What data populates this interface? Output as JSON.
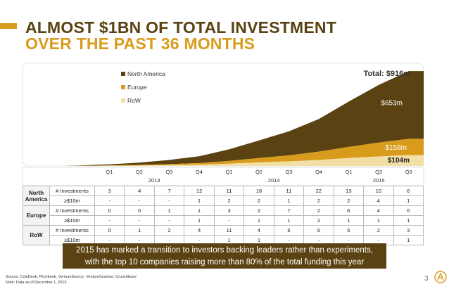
{
  "title": {
    "line1": "ALMOST $1BN OF TOTAL INVESTMENT",
    "line2": "OVER THE PAST 36 MONTHS"
  },
  "colors": {
    "north_america": "#5A4212",
    "europe": "#D89B1C",
    "row": "#F3DFA6",
    "banner": "#5A4212"
  },
  "chart_data": {
    "type": "area",
    "stacked": true,
    "x": [
      "Q1",
      "Q2",
      "Q3",
      "Q4",
      "Q1",
      "Q2",
      "Q3",
      "Q4",
      "Q1",
      "Q2",
      "Q3"
    ],
    "year_groups": [
      {
        "label": "2013",
        "quarters": 4
      },
      {
        "label": "2014",
        "quarters": 4
      },
      {
        "label": "2015",
        "quarters": 3
      }
    ],
    "series": [
      {
        "name": "RoW",
        "values": [
          2,
          4,
          8,
          12,
          22,
          34,
          44,
          58,
          76,
          92,
          104
        ]
      },
      {
        "name": "Europe",
        "values": [
          3,
          6,
          10,
          16,
          26,
          42,
          58,
          80,
          108,
          134,
          158
        ]
      },
      {
        "name": "North America",
        "values": [
          10,
          22,
          40,
          65,
          112,
          170,
          232,
          315,
          438,
          556,
          653
        ]
      }
    ],
    "legend": [
      "North America",
      "Europe",
      "RoW"
    ],
    "legend_position": "top-left",
    "annotations": {
      "total": "Total: $916m",
      "north_america": "$653m",
      "europe": "$158m",
      "row": "$104m"
    }
  },
  "table": {
    "rows": [
      {
        "region": "North America",
        "metric": "# Investments",
        "values": [
          "3",
          "4",
          "7",
          "12",
          "11",
          "16",
          "11",
          "22",
          "13",
          "10",
          "6"
        ]
      },
      {
        "region": "",
        "metric": "≥$10m",
        "values": [
          "-",
          "-",
          "-",
          "1",
          "2",
          "2",
          "1",
          "2",
          "2",
          "4",
          "1"
        ]
      },
      {
        "region": "Europe",
        "metric": "# Investments",
        "values": [
          "0",
          "0",
          "1",
          "1",
          "3",
          "2",
          "7",
          "2",
          "6",
          "4",
          "6"
        ]
      },
      {
        "region": "",
        "metric": "≥$10m",
        "values": [
          "-",
          "-",
          "-",
          "1",
          "-",
          "1",
          "1",
          "2",
          "1",
          "1",
          "1"
        ]
      },
      {
        "region": "RoW",
        "metric": "# Investments",
        "values": [
          "0",
          "1",
          "2",
          "4",
          "11",
          "4",
          "6",
          "6",
          "5",
          "2",
          "3"
        ]
      },
      {
        "region": "",
        "metric": "≥$10m",
        "values": [
          "-",
          "-",
          "-",
          "-",
          "1",
          "1",
          "-",
          "-",
          "-",
          "-",
          "1"
        ]
      }
    ]
  },
  "banner": {
    "line1": "2015 has marked a transition to investors backing leaders rather than experiments,",
    "line2": "with the top 10 companies raising more than 80% of the total funding this year"
  },
  "source": {
    "line1": "Source: CoinDesk, Pitchbook, VentureSource, VentureScanner, Crunchbase",
    "line2": "Note: Data as of December 1, 2015"
  },
  "page_number": "3"
}
